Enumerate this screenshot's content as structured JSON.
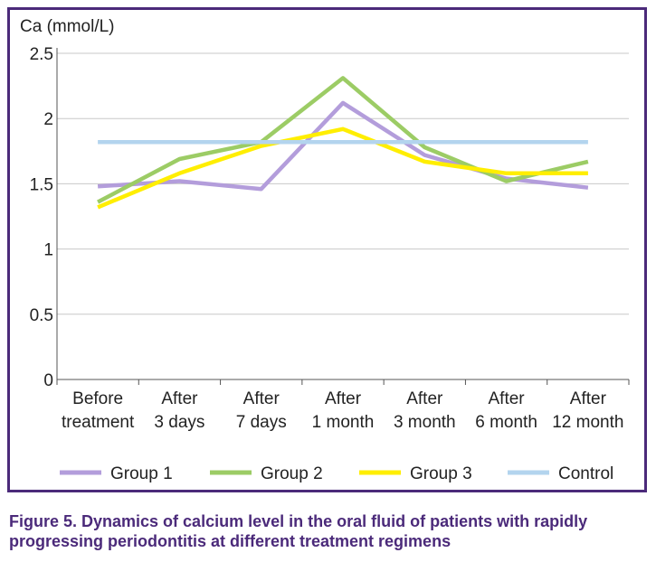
{
  "caption": "Figure 5. Dynamics of calcium level in the oral fluid of patients with rapidly progressing periodontitis at different treatment regimens",
  "chart_data": {
    "type": "line",
    "ylabel": "Ca (mmol/L)",
    "xlabel": "",
    "ylim": [
      0,
      2.5
    ],
    "yticks": [
      "0",
      "0.5",
      "1",
      "1.5",
      "2",
      "2.5"
    ],
    "grid": true,
    "legend_position": "bottom",
    "categories": [
      [
        "Before",
        "treatment"
      ],
      [
        "After",
        "3 days"
      ],
      [
        "After",
        "7 days"
      ],
      [
        "After",
        "1 month"
      ],
      [
        "After",
        "3 month"
      ],
      [
        "After",
        "6 month"
      ],
      [
        "After",
        "12 month"
      ]
    ],
    "series": [
      {
        "name": "Group 1",
        "color": "#b39ddb",
        "values": [
          1.48,
          1.52,
          1.46,
          2.12,
          1.72,
          1.54,
          1.47
        ]
      },
      {
        "name": "Group 2",
        "color": "#9ccc65",
        "values": [
          1.36,
          1.69,
          1.82,
          2.31,
          1.78,
          1.52,
          1.67
        ]
      },
      {
        "name": "Group 3",
        "color": "#ffee00",
        "values": [
          1.32,
          1.58,
          1.79,
          1.92,
          1.67,
          1.58,
          1.58
        ]
      },
      {
        "name": "Control",
        "color": "#b3d4ee",
        "values": [
          1.82,
          1.82,
          1.82,
          1.82,
          1.82,
          1.82,
          1.82
        ]
      }
    ]
  }
}
